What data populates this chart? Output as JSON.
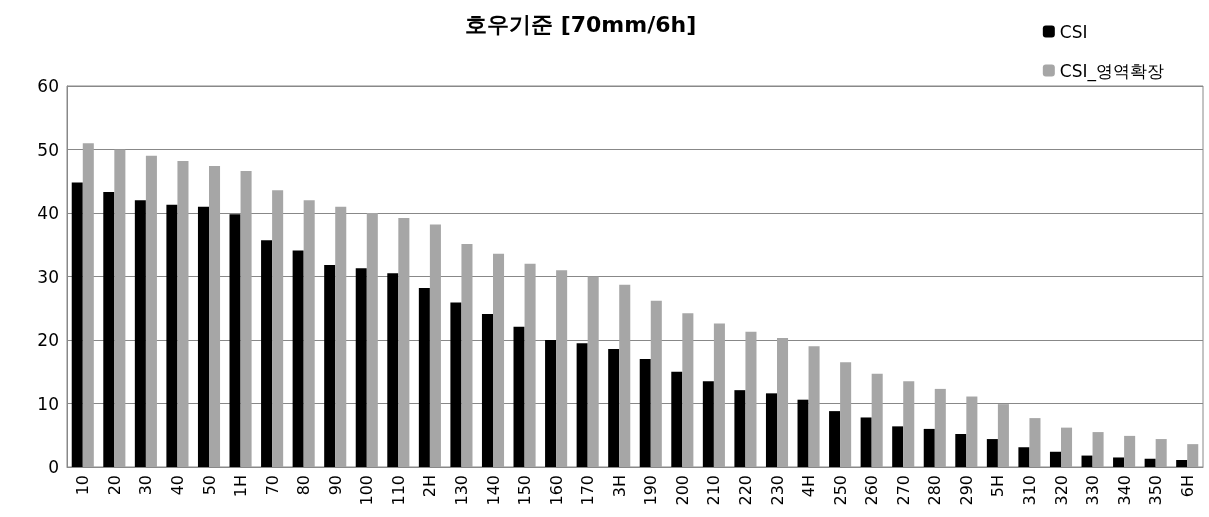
{
  "chart_data": {
    "type": "bar",
    "title": "호우기준 [70mm/6h]",
    "categories": [
      "10",
      "20",
      "30",
      "40",
      "50",
      "1H",
      "70",
      "80",
      "90",
      "100",
      "110",
      "2H",
      "130",
      "140",
      "150",
      "160",
      "170",
      "3H",
      "190",
      "200",
      "210",
      "220",
      "230",
      "4H",
      "250",
      "260",
      "270",
      "280",
      "290",
      "5H",
      "310",
      "320",
      "330",
      "340",
      "350",
      "6H"
    ],
    "series": [
      {
        "name": "CSI",
        "color": "#000000",
        "values": [
          44.8,
          43.3,
          42,
          41.3,
          41,
          39.8,
          35.7,
          34.1,
          31.8,
          31.3,
          30.5,
          28.2,
          25.9,
          24.1,
          22.1,
          20,
          19.5,
          18.6,
          17,
          15,
          13.5,
          12.1,
          11.6,
          10.6,
          8.8,
          7.8,
          6.4,
          6,
          5.2,
          4.4,
          3.1,
          2.4,
          1.8,
          1.5,
          1.3,
          1.1
        ]
      },
      {
        "name": "CSI_영역확장",
        "color": "#a6a6a6",
        "values": [
          51,
          50,
          49,
          48.2,
          47.4,
          46.6,
          43.6,
          42,
          41,
          40,
          39.2,
          38.2,
          35.1,
          33.6,
          32,
          31,
          30,
          28.7,
          26.2,
          24.2,
          22.6,
          21.3,
          20.3,
          19,
          16.5,
          14.7,
          13.5,
          12.3,
          11.1,
          9.9,
          7.7,
          6.2,
          5.5,
          4.9,
          4.4,
          3.6
        ]
      }
    ],
    "ylim": [
      0,
      60
    ],
    "yticks": [
      0,
      10,
      20,
      30,
      40,
      50,
      60
    ],
    "grid": "y",
    "legend": "top right"
  }
}
